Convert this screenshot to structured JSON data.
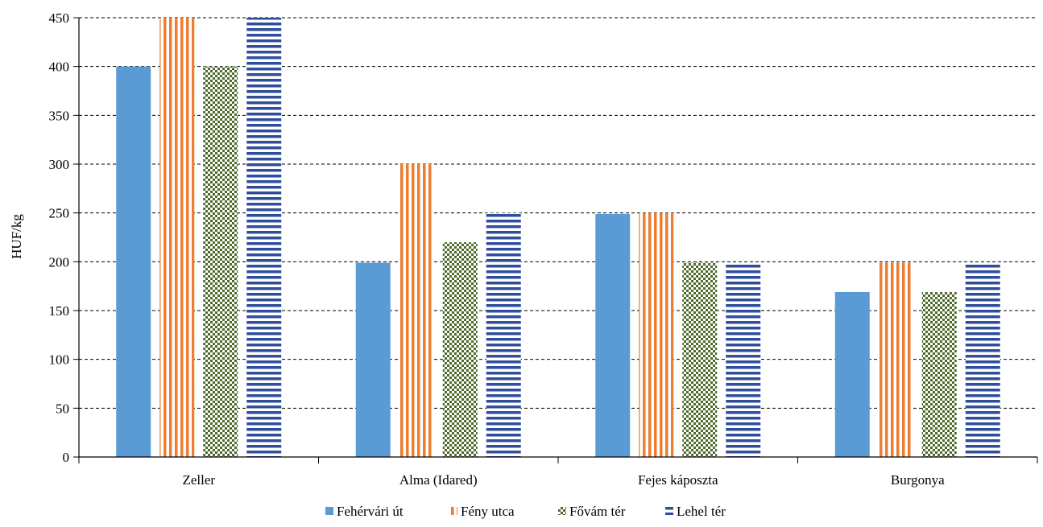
{
  "chart_data": {
    "type": "bar",
    "ylabel": "HUF/kg",
    "ylim": [
      0,
      450
    ],
    "yticks": [
      0,
      50,
      100,
      150,
      200,
      250,
      300,
      350,
      400,
      450
    ],
    "categories": [
      "Zeller",
      "Alma (Idared)",
      "Fejes káposzta",
      "Burgonya"
    ],
    "series": [
      {
        "name": "Fehérvári út",
        "values": [
          400,
          199,
          249,
          169
        ],
        "color": "#5b9bd5",
        "pattern": "solid"
      },
      {
        "name": "Fény utca",
        "values": [
          450,
          300,
          250,
          199
        ],
        "color": "#ed7d31",
        "pattern": "vertical-stripes"
      },
      {
        "name": "Fővám tér",
        "values": [
          400,
          220,
          199,
          169
        ],
        "color": "#4e6b2b",
        "pattern": "checker"
      },
      {
        "name": "Lehel tér",
        "values": [
          450,
          250,
          199,
          199
        ],
        "color": "#2e4d9a",
        "pattern": "horizontal-stripes"
      }
    ],
    "grid": "horizontal-dashed",
    "legend_position": "bottom-center"
  }
}
